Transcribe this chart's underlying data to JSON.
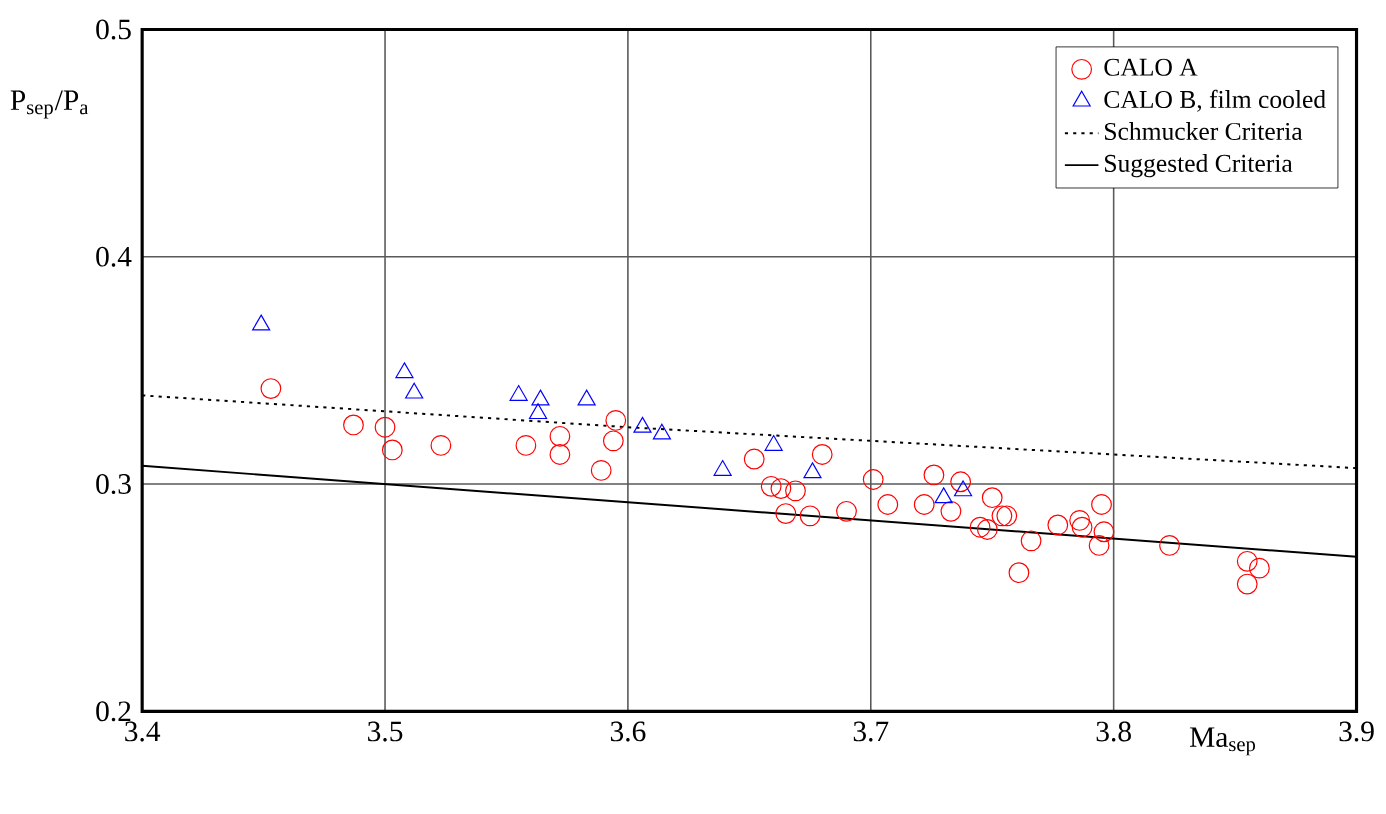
{
  "chart_data": {
    "type": "scatter",
    "xlabel": "Ma$_{sep}$",
    "ylabel": "P$_{sep}$/P$_{a}$",
    "xlim": [
      3.4,
      3.9
    ],
    "ylim": [
      0.2,
      0.5
    ],
    "xticks": [
      3.4,
      3.5,
      3.6,
      3.7,
      3.8,
      3.9
    ],
    "yticks": [
      0.2,
      0.3,
      0.4,
      0.5
    ],
    "grid": true,
    "legend": "top right",
    "series": [
      {
        "name": "CALO A",
        "color": "#ff0000",
        "marker": "circle",
        "x": [
          3.453,
          3.487,
          3.5,
          3.503,
          3.523,
          3.558,
          3.572,
          3.572,
          3.589,
          3.595,
          3.594,
          3.652,
          3.659,
          3.68,
          3.663,
          3.669,
          3.665,
          3.675,
          3.69,
          3.701,
          3.707,
          3.726,
          3.737,
          3.722,
          3.733,
          3.745,
          3.75,
          3.748,
          3.754,
          3.756,
          3.766,
          3.761,
          3.777,
          3.786,
          3.787,
          3.795,
          3.796,
          3.794,
          3.823,
          3.855,
          3.86,
          3.855
        ],
        "values": [
          0.342,
          0.326,
          0.325,
          0.315,
          0.317,
          0.317,
          0.321,
          0.313,
          0.306,
          0.328,
          0.319,
          0.311,
          0.299,
          0.313,
          0.298,
          0.297,
          0.287,
          0.286,
          0.288,
          0.302,
          0.291,
          0.304,
          0.301,
          0.291,
          0.288,
          0.281,
          0.294,
          0.28,
          0.286,
          0.286,
          0.275,
          0.261,
          0.282,
          0.284,
          0.281,
          0.291,
          0.279,
          0.273,
          0.273,
          0.266,
          0.263,
          0.256
        ]
      },
      {
        "name": "CALO B, film cooled",
        "color": "#0000ff",
        "marker": "triangle",
        "x": [
          3.449,
          3.508,
          3.512,
          3.555,
          3.564,
          3.563,
          3.583,
          3.606,
          3.614,
          3.639,
          3.66,
          3.676,
          3.73,
          3.738
        ],
        "values": [
          0.37,
          0.349,
          0.34,
          0.339,
          0.337,
          0.331,
          0.337,
          0.325,
          0.322,
          0.306,
          0.317,
          0.305,
          0.294,
          0.297
        ]
      },
      {
        "name": "Schmucker Criteria",
        "type": "line",
        "color": "#000000",
        "line_style": "dotted",
        "marker": "none",
        "x": [
          3.4,
          3.6,
          3.9
        ],
        "values": [
          0.339,
          0.325,
          0.307
        ]
      },
      {
        "name": "Suggested Criteria",
        "type": "line",
        "color": "#000000",
        "line_style": "solid",
        "marker": "none",
        "x": [
          3.4,
          3.6,
          3.9
        ],
        "values": [
          0.308,
          0.292,
          0.268
        ]
      }
    ]
  }
}
